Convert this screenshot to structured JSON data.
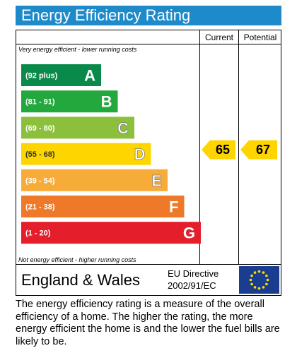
{
  "title": "Energy Efficiency Rating",
  "columns": {
    "current": "Current",
    "potential": "Potential"
  },
  "notes": {
    "top": "Very energy efficient - lower running costs",
    "bottom": "Not energy efficient - higher running costs"
  },
  "footer": {
    "region": "England & Wales",
    "directive_line1": "EU Directive",
    "directive_line2": "2002/91/EC"
  },
  "description": "The energy efficiency rating is a measure of the overall efficiency of a home. The higher the rating, the more energy efficient the home is and the lower the fuel bills are likely to be.",
  "chart_data": {
    "type": "bar",
    "categories": [
      "A",
      "B",
      "C",
      "D",
      "E",
      "F",
      "G"
    ],
    "ranges": [
      "(92 plus)",
      "(81 - 91)",
      "(69 - 80)",
      "(55 - 68)",
      "(39 - 54)",
      "(21 - 38)",
      "(1 - 20)"
    ],
    "colors": [
      "#0a8a4a",
      "#22a83c",
      "#8cc03c",
      "#ffd500",
      "#f7ac3a",
      "#ee7928",
      "#e41e2b"
    ],
    "current": {
      "value": 65,
      "band": "D",
      "color": "#ffd500"
    },
    "potential": {
      "value": 67,
      "band": "D",
      "color": "#ffd500"
    }
  }
}
